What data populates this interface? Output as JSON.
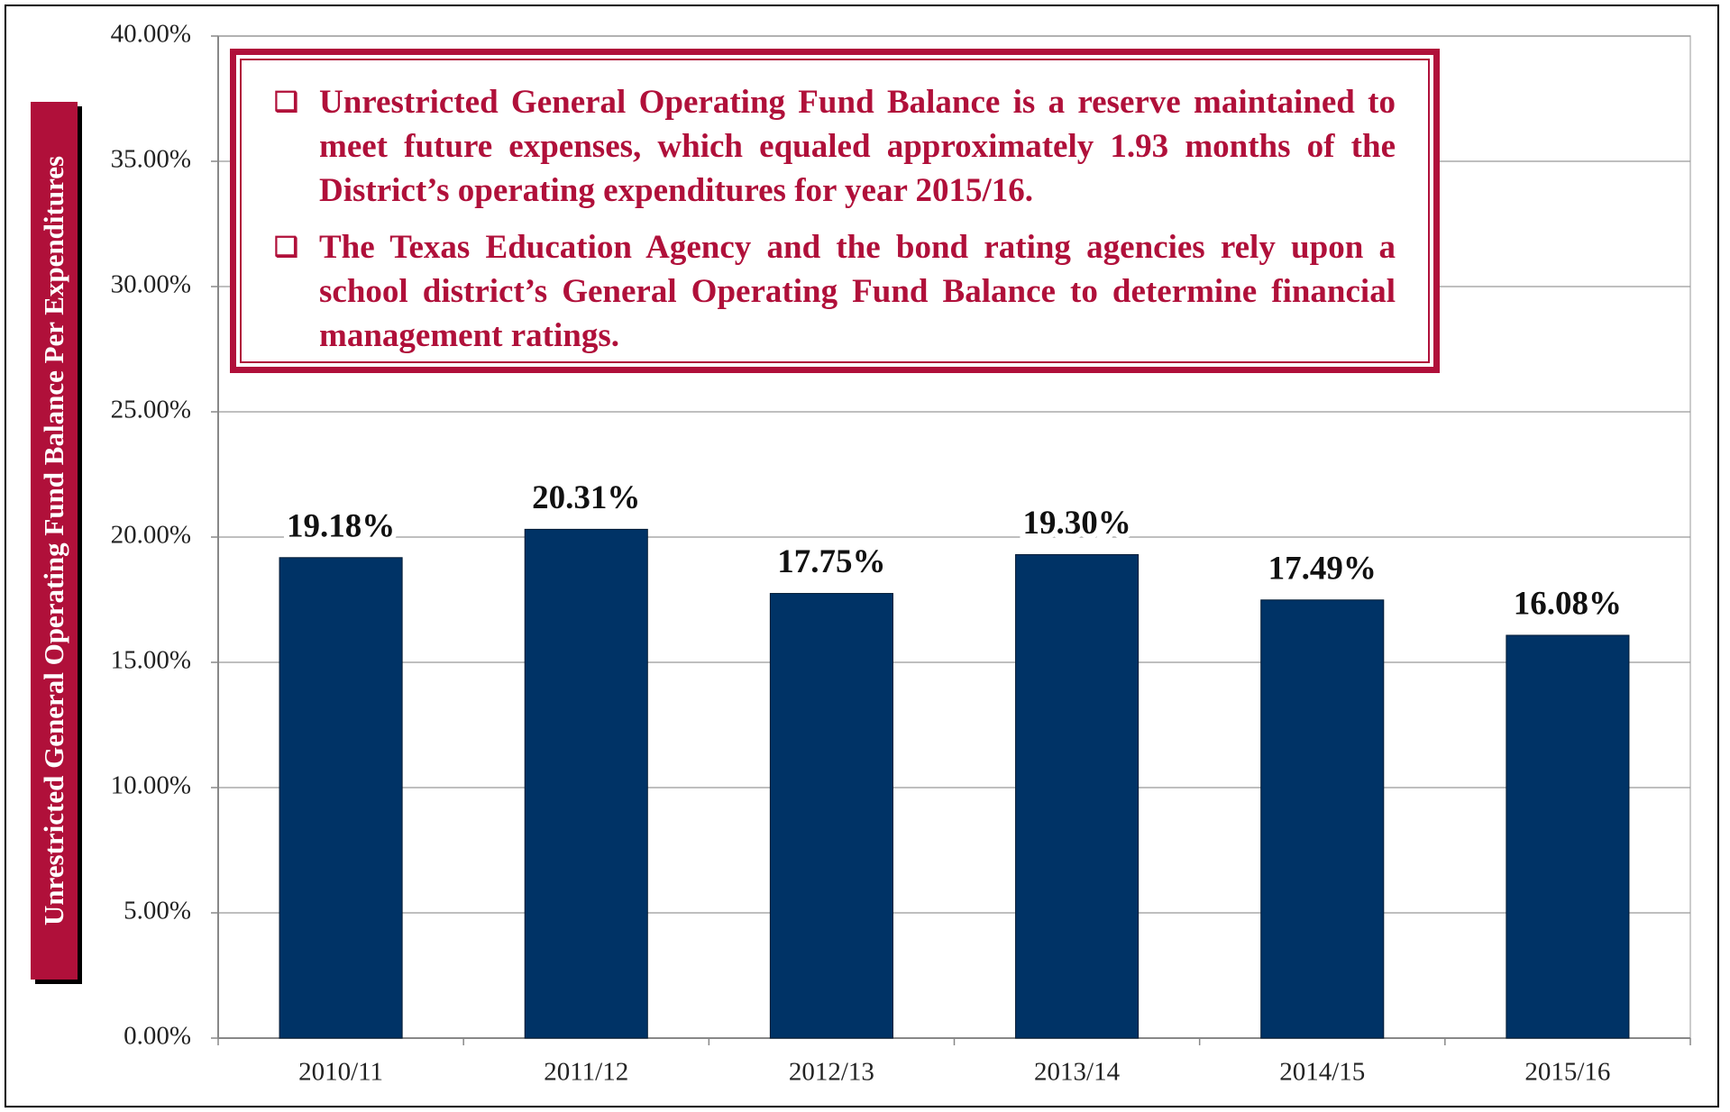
{
  "chart_data": {
    "type": "bar",
    "y_label": "Unrestricted General Operating Fund Balance Per Expenditures",
    "annotations": [
      "Unrestricted General Operating Fund Balance is a reserve maintained to meet future expenses, which equaled approximately 1.93 months of the District’s operating expenditures for year 2015/16.",
      "The Texas Education Agency and the bond rating agencies rely upon a school district’s General Operating Fund Balance to determine financial management ratings."
    ],
    "categories": [
      "2010/11",
      "2011/12",
      "2012/13",
      "2013/14",
      "2014/15",
      "2015/16"
    ],
    "values": [
      19.18,
      20.31,
      17.75,
      19.3,
      17.49,
      16.08
    ],
    "value_labels": [
      "19.18%",
      "20.31%",
      "17.75%",
      "19.30%",
      "17.49%",
      "16.08%"
    ],
    "color": "#003366",
    "ylim": [
      0,
      40
    ],
    "yticks": [
      {
        "value": 0,
        "label": "0.00%"
      },
      {
        "value": 5,
        "label": "5.00%"
      },
      {
        "value": 10,
        "label": "10.00%"
      },
      {
        "value": 15,
        "label": "15.00%"
      },
      {
        "value": 20,
        "label": "20.00%"
      },
      {
        "value": 25,
        "label": "25.00%"
      },
      {
        "value": 30,
        "label": "30.00%"
      },
      {
        "value": 35,
        "label": "35.00%"
      },
      {
        "value": 40,
        "label": "40.00%"
      }
    ],
    "grid": true
  }
}
